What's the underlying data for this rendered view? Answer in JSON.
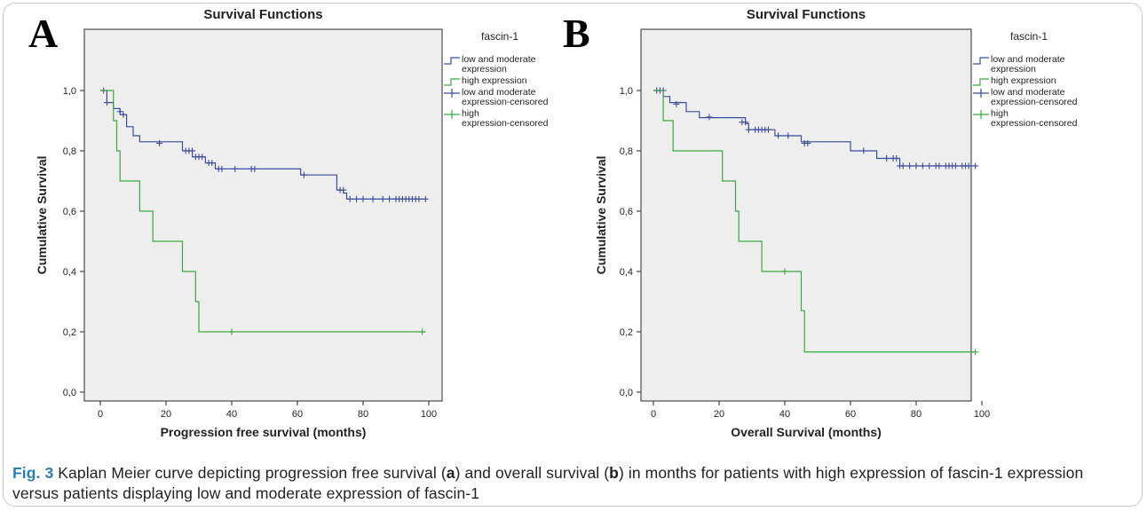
{
  "caption": {
    "label": "Fig. 3",
    "part1": " Kaplan Meier curve depicting progression free survival (",
    "a": "a",
    "part2": ") and overall survival (",
    "b": "b",
    "part3": ") in months for patients with high expression of fascin-1 expression versus patients displaying low and moderate expression of fascin-1"
  },
  "colors": {
    "low_moderate": "#3c4c9c",
    "high": "#3aa843",
    "plot_bg": "#eeeeee"
  },
  "chart_data": [
    {
      "panel": "A",
      "type": "line",
      "step": true,
      "title": "Survival Functions",
      "xlabel": "Progression free survival (months)",
      "ylabel": "Cumulative Survival",
      "xlim": [
        0,
        100
      ],
      "ylim": [
        0,
        1
      ],
      "xticks": [
        0,
        20,
        40,
        60,
        80,
        100
      ],
      "yticks": [
        0.0,
        0.2,
        0.4,
        0.6,
        0.8,
        1.0
      ],
      "ytick_labels": [
        "0,0",
        "0,2",
        "0,4",
        "0,6",
        "0,8",
        "1,0"
      ],
      "grid": false,
      "legend_title": "fascin-1",
      "legend_position": "right",
      "series": [
        {
          "name": "low and moderate expression",
          "color_key": "low_moderate",
          "steps": [
            [
              0,
              1.0
            ],
            [
              2,
              0.96
            ],
            [
              4,
              0.94
            ],
            [
              6,
              0.92
            ],
            [
              8,
              0.88
            ],
            [
              10,
              0.85
            ],
            [
              12,
              0.83
            ],
            [
              25,
              0.8
            ],
            [
              28,
              0.78
            ],
            [
              32,
              0.76
            ],
            [
              35,
              0.74
            ],
            [
              61,
              0.72
            ],
            [
              72,
              0.67
            ],
            [
              74,
              0.66
            ],
            [
              75,
              0.64
            ],
            [
              99,
              0.64
            ]
          ],
          "censored": [
            [
              1,
              1.0
            ],
            [
              2,
              0.96
            ],
            [
              6,
              0.93
            ],
            [
              7,
              0.92
            ],
            [
              18,
              0.825
            ],
            [
              26,
              0.8
            ],
            [
              27,
              0.8
            ],
            [
              28,
              0.8
            ],
            [
              29,
              0.78
            ],
            [
              30,
              0.78
            ],
            [
              31,
              0.78
            ],
            [
              33,
              0.76
            ],
            [
              34,
              0.76
            ],
            [
              36,
              0.74
            ],
            [
              37,
              0.74
            ],
            [
              41,
              0.74
            ],
            [
              46,
              0.74
            ],
            [
              47,
              0.74
            ],
            [
              62,
              0.72
            ],
            [
              73,
              0.67
            ],
            [
              74,
              0.67
            ],
            [
              76,
              0.64
            ],
            [
              78,
              0.64
            ],
            [
              80,
              0.64
            ],
            [
              83,
              0.64
            ],
            [
              86,
              0.64
            ],
            [
              88,
              0.64
            ],
            [
              90,
              0.64
            ],
            [
              91,
              0.64
            ],
            [
              92,
              0.64
            ],
            [
              93,
              0.64
            ],
            [
              94,
              0.64
            ],
            [
              95,
              0.64
            ],
            [
              96,
              0.64
            ],
            [
              97,
              0.64
            ],
            [
              99,
              0.64
            ]
          ]
        },
        {
          "name": "high expression",
          "color_key": "high",
          "steps": [
            [
              0,
              1.0
            ],
            [
              4,
              0.9
            ],
            [
              5,
              0.8
            ],
            [
              6,
              0.7
            ],
            [
              12,
              0.6
            ],
            [
              16,
              0.5
            ],
            [
              25,
              0.4
            ],
            [
              29,
              0.3
            ],
            [
              30,
              0.2
            ],
            [
              99,
              0.2
            ]
          ],
          "censored": [
            [
              40,
              0.2
            ],
            [
              98,
              0.2
            ]
          ]
        }
      ],
      "legend_entries": [
        "low and moderate expression",
        "high expression",
        "low and moderate expression-censored",
        "high expression-censored"
      ]
    },
    {
      "panel": "B",
      "type": "line",
      "step": true,
      "title": "Survival Functions",
      "xlabel": "Overall Survival (months)",
      "ylabel": "Cumulative Survival",
      "xlim": [
        0,
        100
      ],
      "ylim": [
        0,
        1
      ],
      "xticks": [
        0,
        20,
        40,
        60,
        80,
        100
      ],
      "yticks": [
        0.0,
        0.2,
        0.4,
        0.6,
        0.8,
        1.0
      ],
      "ytick_labels": [
        "0,0",
        "0,2",
        "0,4",
        "0,6",
        "0,8",
        "1,0"
      ],
      "grid": false,
      "legend_title": "fascin-1",
      "legend_position": "right",
      "series": [
        {
          "name": "low and moderate expression",
          "color_key": "low_moderate",
          "steps": [
            [
              0,
              1.0
            ],
            [
              3,
              0.98
            ],
            [
              5,
              0.96
            ],
            [
              10,
              0.93
            ],
            [
              14,
              0.91
            ],
            [
              28,
              0.89
            ],
            [
              29,
              0.87
            ],
            [
              30,
              0.87
            ],
            [
              37,
              0.85
            ],
            [
              45,
              0.83
            ],
            [
              60,
              0.8
            ],
            [
              68,
              0.775
            ],
            [
              75,
              0.75
            ],
            [
              98,
              0.75
            ]
          ],
          "censored": [
            [
              1,
              1.0
            ],
            [
              2,
              1.0
            ],
            [
              3,
              1.0
            ],
            [
              7,
              0.955
            ],
            [
              17,
              0.912
            ],
            [
              27,
              0.895
            ],
            [
              28,
              0.895
            ],
            [
              29,
              0.87
            ],
            [
              31,
              0.87
            ],
            [
              32,
              0.87
            ],
            [
              33,
              0.87
            ],
            [
              34,
              0.87
            ],
            [
              35,
              0.87
            ],
            [
              38,
              0.85
            ],
            [
              41,
              0.85
            ],
            [
              46,
              0.825
            ],
            [
              47,
              0.825
            ],
            [
              64,
              0.8
            ],
            [
              71,
              0.775
            ],
            [
              73,
              0.775
            ],
            [
              74,
              0.775
            ],
            [
              75,
              0.75
            ],
            [
              76,
              0.75
            ],
            [
              78,
              0.75
            ],
            [
              80,
              0.75
            ],
            [
              82,
              0.75
            ],
            [
              84,
              0.75
            ],
            [
              86,
              0.75
            ],
            [
              87,
              0.75
            ],
            [
              89,
              0.75
            ],
            [
              90,
              0.75
            ],
            [
              91,
              0.75
            ],
            [
              92,
              0.75
            ],
            [
              94,
              0.75
            ],
            [
              95,
              0.75
            ],
            [
              96,
              0.75
            ],
            [
              98,
              0.75
            ]
          ]
        },
        {
          "name": "high expression",
          "color_key": "high",
          "steps": [
            [
              0,
              1.0
            ],
            [
              3,
              0.9
            ],
            [
              6,
              0.8
            ],
            [
              21,
              0.7
            ],
            [
              25,
              0.6
            ],
            [
              26,
              0.5
            ],
            [
              33,
              0.4
            ],
            [
              45,
              0.27
            ],
            [
              46,
              0.133
            ],
            [
              98,
              0.133
            ]
          ],
          "censored": [
            [
              40,
              0.4
            ],
            [
              98,
              0.133
            ]
          ]
        }
      ],
      "legend_entries": [
        "low and moderate expression",
        "high expression",
        "low and moderate expression-censored",
        "high expression-censored"
      ]
    }
  ]
}
